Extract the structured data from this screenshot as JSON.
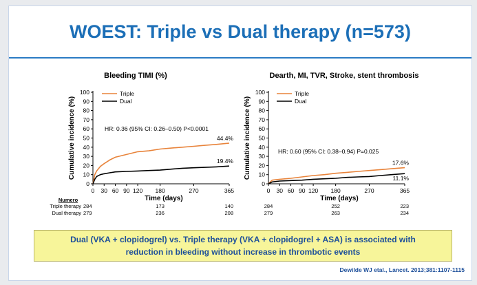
{
  "title": "WOEST: Triple vs Dual therapy (n=573)",
  "callout": {
    "line1": "Dual  (VKA + clopidogrel) vs. Triple therapy (VKA + clopidogrel + ASA) is associated with",
    "line2": "reduction in bleeding without increase in thrombotic events"
  },
  "citation": "Dewilde WJ etal.,  Lancet. 2013;381:1107-1115",
  "colors": {
    "triple": "#e8833a",
    "dual": "#000000",
    "title": "#1c6fb7"
  },
  "chart_data": [
    {
      "type": "line",
      "title": "Bleeding TIMI  (%)",
      "xlabel": "Time (days)",
      "ylabel": "Cumulative incidence (%)",
      "xlim": [
        0,
        365
      ],
      "ylim": [
        0,
        100
      ],
      "xticks": [
        "0",
        "30",
        "60",
        "90",
        "120",
        "180",
        "270",
        "365"
      ],
      "yticks": [
        "0",
        "10",
        "20",
        "30",
        "40",
        "50",
        "60",
        "70",
        "80",
        "90",
        "100"
      ],
      "annotation": "HR: 0.36 (95% CI: 0.26–0.50) P<0.0001",
      "end_labels": [
        "44.4%",
        "19.4%"
      ],
      "series": [
        {
          "name": "Triple",
          "color": "#e8833a",
          "x": [
            0,
            5,
            10,
            20,
            30,
            45,
            60,
            90,
            120,
            150,
            180,
            210,
            240,
            270,
            300,
            330,
            365
          ],
          "y": [
            0,
            10,
            14,
            19,
            22,
            26,
            29,
            32,
            35,
            36,
            38,
            39,
            40,
            41,
            42,
            43,
            44.4
          ]
        },
        {
          "name": "Dual",
          "color": "#000000",
          "x": [
            0,
            5,
            10,
            20,
            30,
            45,
            60,
            90,
            120,
            150,
            180,
            210,
            240,
            270,
            300,
            330,
            365
          ],
          "y": [
            0,
            5,
            8,
            10,
            11,
            12,
            13,
            13.5,
            14,
            14.5,
            15,
            16,
            17,
            17.5,
            18,
            18.5,
            19.4
          ]
        }
      ],
      "risk_table": {
        "header": "Numero",
        "rows": [
          {
            "label": "Triple therapy",
            "values": [
              "284",
              "173",
              "140"
            ]
          },
          {
            "label": "Dual therapy",
            "values": [
              "279",
              "236",
              "208"
            ]
          }
        ],
        "x": [
          0,
          180,
          365
        ]
      }
    },
    {
      "type": "line",
      "title": "Dearth, MI, TVR, Stroke, stent thrombosis",
      "xlabel": "Time (days)",
      "ylabel": "Cumulative incidence (%)",
      "xlim": [
        0,
        365
      ],
      "ylim": [
        0,
        100
      ],
      "xticks": [
        "0",
        "30",
        "60",
        "90",
        "120",
        "180",
        "270",
        "365"
      ],
      "yticks": [
        "0",
        "10",
        "20",
        "30",
        "40",
        "50",
        "60",
        "70",
        "80",
        "90",
        "100"
      ],
      "annotation": "HR: 0.60 (95% CI: 0.38–0.94) P=0.025",
      "end_labels": [
        "17.6%",
        "11.1%"
      ],
      "series": [
        {
          "name": "Triple",
          "color": "#e8833a",
          "x": [
            0,
            10,
            30,
            60,
            90,
            120,
            150,
            180,
            210,
            240,
            270,
            300,
            330,
            365
          ],
          "y": [
            0,
            4,
            5,
            6,
            7.5,
            9,
            10,
            11.5,
            12.5,
            13.5,
            14.5,
            15.5,
            16.5,
            17.6
          ]
        },
        {
          "name": "Dual",
          "color": "#000000",
          "x": [
            0,
            10,
            30,
            60,
            90,
            120,
            150,
            180,
            210,
            240,
            270,
            300,
            330,
            365
          ],
          "y": [
            0,
            2,
            3,
            3.5,
            4,
            5,
            5.5,
            6,
            7,
            7.5,
            8,
            9,
            10,
            11.1
          ]
        }
      ],
      "risk_table": {
        "rows": [
          {
            "label": "Triple therapy",
            "values": [
              "284",
              "252",
              "223"
            ]
          },
          {
            "label": "Dual therapy",
            "values": [
              "279",
              "263",
              "234"
            ]
          }
        ],
        "x": [
          0,
          180,
          365
        ]
      }
    }
  ]
}
